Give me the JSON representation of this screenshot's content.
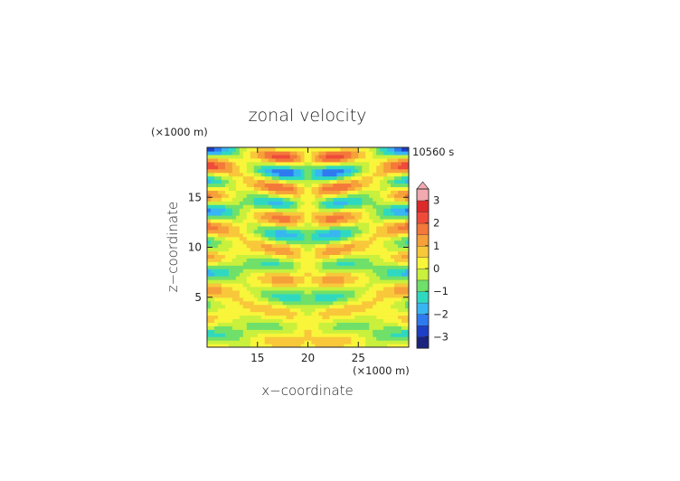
{
  "chart_data": {
    "type": "heatmap",
    "title": "zonal velocity",
    "xlabel": "x−coordinate",
    "ylabel": "z−coordinate",
    "x_unit": "(×1000 m)",
    "z_unit": "(×1000 m)",
    "time_label": "10560 s",
    "xlim": [
      10,
      30
    ],
    "zlim": [
      0,
      20
    ],
    "x_ticks": [
      "15",
      "20",
      "25"
    ],
    "z_ticks": [
      "5",
      "10",
      "15"
    ],
    "colorbar_ticks": [
      "3",
      "2",
      "1",
      "0",
      "−1",
      "−2",
      "−3"
    ],
    "colorbar_levels": [
      -3.5,
      3.5
    ],
    "colorbar_extend": "max",
    "grid": false,
    "colors": [
      "#1a237e",
      "#1d3fc6",
      "#2e7bf0",
      "#38b6f2",
      "#2fd9c0",
      "#6fe06a",
      "#c8f03c",
      "#f8f53a",
      "#f8c83a",
      "#f6a03a",
      "#f4783a",
      "#ef4a3a",
      "#dc2a2a",
      "#f2aab0"
    ],
    "field_description": "oscillating bands"
  }
}
